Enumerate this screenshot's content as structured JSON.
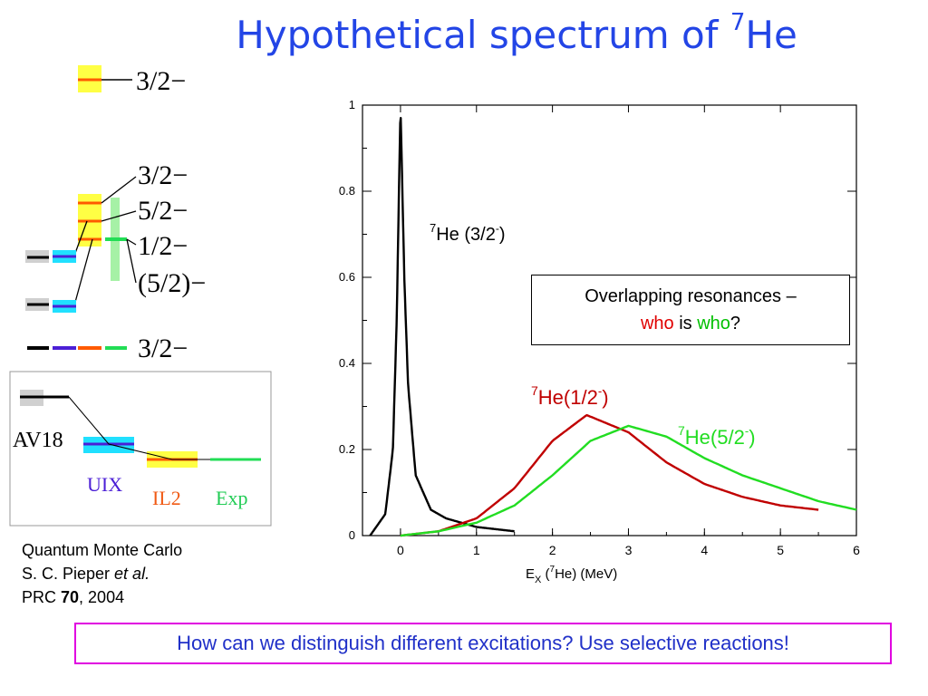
{
  "title": {
    "text": "Hypothetical spectrum of ",
    "sup": "7",
    "element": "He"
  },
  "level_diagram": {
    "labels": [
      "3/2−",
      "3/2−",
      "5/2−",
      "1/2−",
      "(5/2)−",
      "3/2−"
    ],
    "legend": {
      "av18": "AV18",
      "uix": "UIX",
      "il2": "IL2",
      "exp": "Exp"
    },
    "colors": {
      "av18": "#000000",
      "uix": "#4b1fd6",
      "il2": "#f05a14",
      "exp": "#22dd55"
    }
  },
  "citation": {
    "line1": "Quantum Monte Carlo",
    "line2_pre": "S. C. Pieper ",
    "line2_em": "et al.",
    "line3_pre": "PRC ",
    "line3_bold": "70",
    "line3_post": ", 2004"
  },
  "callout": {
    "line1": "Overlapping resonances –",
    "who1": "who",
    "is": " is ",
    "who2": "who",
    "q": "?"
  },
  "bottom_text": "How can we distinguish different excitations?  Use selective reactions!",
  "chart_data": {
    "type": "line",
    "xlabel": "E_X (7He) (MeV)",
    "xlim": [
      -0.5,
      6
    ],
    "ylim": [
      0,
      1
    ],
    "x_ticks": [
      "0",
      "1",
      "2",
      "3",
      "4",
      "5",
      "6"
    ],
    "y_ticks": [
      "0",
      "0.2",
      "0.4",
      "0.6",
      "0.8",
      "1"
    ],
    "series": [
      {
        "name": "7He (3/2-)",
        "color": "#000000",
        "peak_x": 0.0,
        "peak_y": 1.0,
        "x": [
          -0.4,
          -0.2,
          -0.1,
          -0.05,
          0.0,
          0.05,
          0.1,
          0.2,
          0.4,
          0.6,
          1.0,
          1.5
        ],
        "y": [
          0.0,
          0.05,
          0.2,
          0.5,
          1.0,
          0.6,
          0.35,
          0.14,
          0.06,
          0.04,
          0.02,
          0.01
        ]
      },
      {
        "name": "7He(1/2-)",
        "color": "#c00000",
        "peak_x": 2.45,
        "peak_y": 0.28,
        "x": [
          0.0,
          0.5,
          1.0,
          1.5,
          2.0,
          2.45,
          3.0,
          3.5,
          4.0,
          4.5,
          5.0,
          5.5
        ],
        "y": [
          0.0,
          0.01,
          0.04,
          0.11,
          0.22,
          0.28,
          0.24,
          0.17,
          0.12,
          0.09,
          0.07,
          0.06
        ]
      },
      {
        "name": "7He(5/2-)",
        "color": "#22dd22",
        "peak_x": 3.0,
        "peak_y": 0.255,
        "x": [
          0.0,
          0.5,
          1.0,
          1.5,
          2.0,
          2.5,
          3.0,
          3.5,
          4.0,
          4.5,
          5.0,
          5.5,
          6.0
        ],
        "y": [
          0.0,
          0.01,
          0.03,
          0.07,
          0.14,
          0.22,
          0.255,
          0.23,
          0.18,
          0.14,
          0.11,
          0.08,
          0.06
        ]
      }
    ],
    "annotations": [
      {
        "text_sup": "7",
        "text": "He (3/2",
        "text_sup2": "-",
        "text_end": ")",
        "color": "#000000"
      },
      {
        "text_sup": "7",
        "text": "He(1/2",
        "text_sup2": "-",
        "text_end": ")",
        "color": "#c00000"
      },
      {
        "text_sup": "7",
        "text": "He(5/2",
        "text_sup2": "-",
        "text_end": ")",
        "color": "#22dd22"
      }
    ]
  }
}
